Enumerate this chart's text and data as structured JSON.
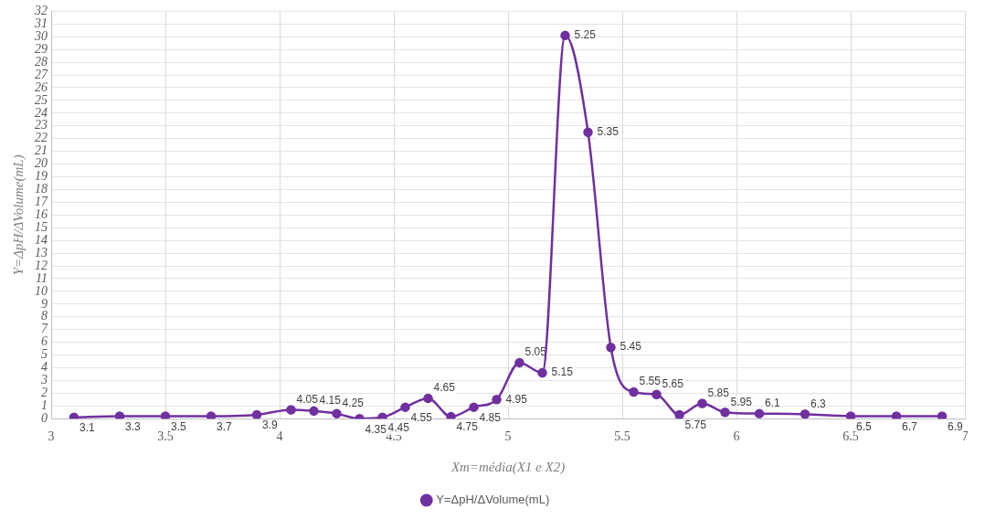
{
  "chart_data": {
    "type": "line",
    "xlabel": "Xm=média(X1 e X2)",
    "ylabel": "Y=ΔpH/ΔVolume(mL)",
    "x": [
      3.1,
      3.3,
      3.5,
      3.7,
      3.9,
      4.05,
      4.15,
      4.25,
      4.35,
      4.45,
      4.55,
      4.65,
      4.75,
      4.85,
      4.95,
      5.05,
      5.15,
      5.25,
      5.35,
      5.45,
      5.55,
      5.65,
      5.75,
      5.85,
      5.95,
      6.1,
      6.3,
      6.5,
      6.7,
      6.9
    ],
    "series": [
      {
        "name": "Y=ΔpH/ΔVolume(mL)",
        "color": "#7030a0",
        "values": [
          0.1,
          0.2,
          0.2,
          0.2,
          0.3,
          0.7,
          0.6,
          0.4,
          0.0,
          0.1,
          0.9,
          1.6,
          0.15,
          0.9,
          1.5,
          4.4,
          3.6,
          30.1,
          22.5,
          5.6,
          2.1,
          1.9,
          0.3,
          1.2,
          0.5,
          0.4,
          0.35,
          0.2,
          0.2,
          0.2
        ]
      }
    ],
    "annotations": [
      {
        "text": "3.1",
        "x": 3.1,
        "y": 0.1
      },
      {
        "text": "3.3",
        "x": 3.3,
        "y": 0.2
      },
      {
        "text": "3.5",
        "x": 3.5,
        "y": 0.2
      },
      {
        "text": "3.7",
        "x": 3.7,
        "y": 0.2
      },
      {
        "text": "3.9",
        "x": 3.9,
        "y": 0.3
      },
      {
        "text": "4.05",
        "x": 4.05,
        "y": 0.7
      },
      {
        "text": "4.15",
        "x": 4.15,
        "y": 0.6
      },
      {
        "text": "4.25",
        "x": 4.25,
        "y": 0.4
      },
      {
        "text": "4.35",
        "x": 4.35,
        "y": 0.0
      },
      {
        "text": "4.45",
        "x": 4.45,
        "y": 0.1
      },
      {
        "text": "4.55",
        "x": 4.55,
        "y": 0.9
      },
      {
        "text": "4.65",
        "x": 4.65,
        "y": 1.6
      },
      {
        "text": "4.75",
        "x": 4.75,
        "y": 0.15
      },
      {
        "text": "4.85",
        "x": 4.85,
        "y": 0.9
      },
      {
        "text": "4.95",
        "x": 4.95,
        "y": 1.5
      },
      {
        "text": "5.05",
        "x": 5.05,
        "y": 4.4
      },
      {
        "text": "5.15",
        "x": 5.15,
        "y": 3.6
      },
      {
        "text": "5.25",
        "x": 5.25,
        "y": 30.1
      },
      {
        "text": "5.35",
        "x": 5.35,
        "y": 22.5
      },
      {
        "text": "5.45",
        "x": 5.45,
        "y": 5.6
      },
      {
        "text": "5.55",
        "x": 5.55,
        "y": 2.1
      },
      {
        "text": "5.65",
        "x": 5.65,
        "y": 1.9
      },
      {
        "text": "5.75",
        "x": 5.75,
        "y": 0.3
      },
      {
        "text": "5.85",
        "x": 5.85,
        "y": 1.2
      },
      {
        "text": "5.95",
        "x": 5.95,
        "y": 0.5
      },
      {
        "text": "6.1",
        "x": 6.1,
        "y": 0.4
      },
      {
        "text": "6.3",
        "x": 6.3,
        "y": 0.35
      },
      {
        "text": "6.5",
        "x": 6.5,
        "y": 0.2
      },
      {
        "text": "6.7",
        "x": 6.7,
        "y": 0.2
      },
      {
        "text": "6.9",
        "x": 6.9,
        "y": 0.2
      }
    ],
    "xlim": [
      3,
      7
    ],
    "xticks": [
      3,
      3.5,
      4,
      4.5,
      5,
      5.5,
      6,
      6.5,
      7
    ],
    "ylim": [
      0,
      32
    ],
    "yticks": [
      0,
      1,
      2,
      3,
      4,
      5,
      6,
      7,
      8,
      9,
      10,
      11,
      12,
      13,
      14,
      15,
      16,
      17,
      18,
      19,
      20,
      21,
      22,
      23,
      24,
      25,
      26,
      27,
      28,
      29,
      30,
      31,
      32
    ],
    "grid": true,
    "legend": "bottom",
    "marker": "circle",
    "line_style": "solid"
  }
}
